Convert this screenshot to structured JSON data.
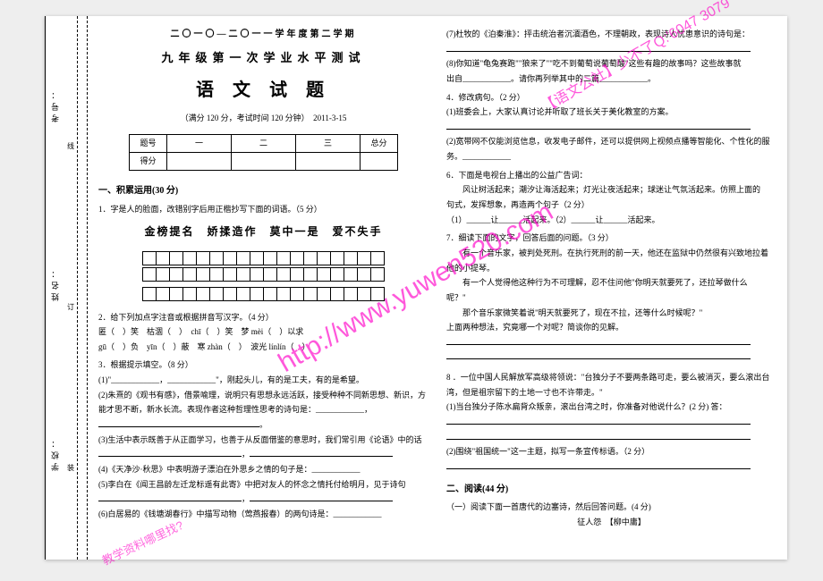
{
  "binding": {
    "labels": [
      "考号：",
      "姓名：",
      "学校："
    ],
    "marks": [
      "线",
      "订",
      "装"
    ]
  },
  "header": {
    "line1": "二〇一〇—二〇一一学年度第二学期",
    "line2": "九年级第一次学业水平测试",
    "line3": "语 文 试 题",
    "line4": "（满分 120 分，考试时间 120 分钟）　2011-3-15"
  },
  "scoretable": {
    "r1": [
      "题号",
      "一",
      "二",
      "三",
      "总分"
    ],
    "r2": "得分"
  },
  "left": {
    "sec1": "一、积累运用(30 分)",
    "q1": "1．字是人的脸面，改错别字后用正楷抄写下面的词语。（5 分）",
    "idioms": "金榜提名　娇揉造作　莫中一是　爱不失手",
    "q2": "2．给下列加点字注音或根据拼音写汉字。（4 分）",
    "q2a": "匿（　）笑　枯涸（　）　chī（　）笑　梦 mèi（　）以求",
    "q2b": "gū（　）负　yīn（　）蔽　寒 zhàn（　）　波光 línlín（　）",
    "q3": "3．根据提示填空。（8 分）",
    "q3_1": "(1)\"____________，____________\"，刚起头儿，有的是工夫，有的是希望。",
    "q3_2": "(2)朱熹的《观书有感》，借景喻理，说明只有思想永远活跃，接受种种不同新思想、新识，方能才思不断，新水长流。表现作者这种哲理性思考的诗句是：____________，",
    "q3_3": "(3)生活中表示既善于从正面学习，也善于从反面借鉴的意思时，我们常引用《论语》中的话",
    "q3_4": "(4)《天净沙·秋思》中表明游子漂泊在外思乡之情的句子是：____________",
    "q3_5": "(5)李白在《闻王昌龄左迁龙标遥有此寄》中把对友人的怀念之情托付给明月，见于诗句",
    "q3_6": "(6)白居易的《钱塘湖春行》中描写动物（莺燕报春）的两句诗是：____________"
  },
  "right": {
    "q3_7": "(7)杜牧的《泊秦淮》：抨击统治者沉湎酒色，不理朝政，表现诗人忧患意识的诗句是：",
    "q3_8a": "(8)你知道\"龟兔赛跑\"\"狼来了\"\"吃不到葡萄说葡萄酸\"这些有趣的故事吗？这些故事就",
    "q3_8b": "出自____________。请你再列举其中的二篇____________。",
    "q4": "4．修改病句。（2 分）",
    "q4_1": "(1)班委会上，大家认真讨论并听取了班长关于美化教室的方案。",
    "q4_2": "(2)宽带网不仅能浏览信息，收发电子邮件，还可以提供网上视频点播等智能化、个性化的服",
    "q4_2b": "务。____________",
    "q6": "6．下面是电视台上播出的公益广告词：",
    "q6a": "　　风让树活起来；潮汐让海活起来；灯光让夜活起来；球迷让气氛活起来。仿照上面的",
    "q6b": "句式，发挥想象，再造两个句子（2 分）",
    "q6c": "（1）______让______活起来。（2）______让______活起来。",
    "q7": "7．细读下面的文字，回答后面的问题。（3 分）",
    "q7a": "　　有一个音乐家，被判处死刑。在执行死刑的前一天，他还在监狱中仍然很有兴致地拉着",
    "q7b": "他的小提琴。",
    "q7c": "　　有一个人觉得他这种行为不可理解，忍不住问他\"你明天就要死了，还拉琴做什么",
    "q7d": "呢？\"",
    "q7e": "　　那个音乐家微笑着说\"明天就要死了，现在不拉，还等什么时候呢？\"",
    "q7f": "上面两种想法，究竟哪一个对呢？简谈你的见解。",
    "q8h": "8 ．一位中国人民解放军高级将领说：\"台独分子不要两条路可走，要么被消灭，要么滚出台",
    "q8h2": "湾，但是祖宗留下的土地一寸也不许带走。\"",
    "q8a": "(1)当台独分子陈水扁背众叛亲，滚出台湾之时，你准备对他说什么？(2 分) 答：",
    "q8b": "(2)围绕\"祖国统一\"这一主题，拟写一条宣传标语。（2 分）",
    "sec2": "二、阅读(44 分)",
    "r1": "（一）阅读下面一首唐代的边塞诗，然后回答问题。(4 分)",
    "r2": "征人怨　【柳中庸】"
  },
  "watermarks": {
    "main": "http://www.yuwen520.com",
    "corner": "【语文公社】少不了Q:'6047 3079",
    "bottom": "教学资料哪里找?"
  },
  "style": {
    "page_bg": "#ffffff",
    "body_bg": "#eeeeee",
    "wm_color": "#ff00c8",
    "font_base": 9,
    "grid_cols": 18
  }
}
